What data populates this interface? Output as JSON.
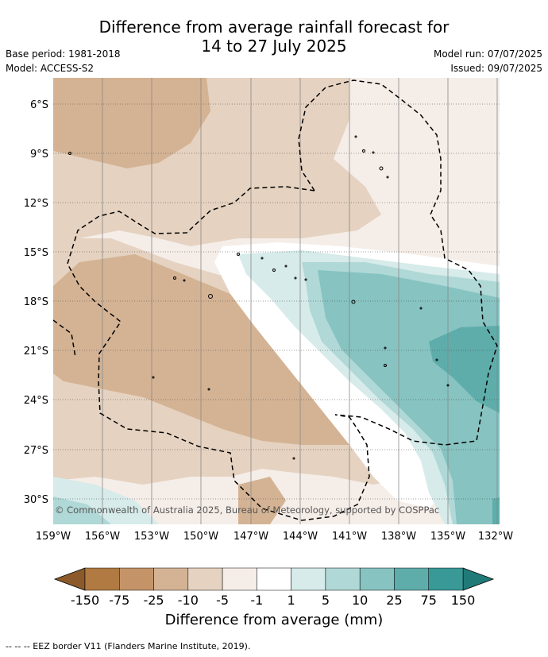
{
  "title_line1": "Difference from average rainfall forecast for",
  "title_line2": "14 to 27 July 2025",
  "base_period": "Base period: 1981-2018",
  "model": "Model: ACCESS-S2",
  "model_run": "Model run: 07/07/2025",
  "issued": "Issued: 09/07/2025",
  "copyright": "© Commonwealth of Australia 2025, Bureau of Meteorology, supported by COSPPac",
  "lat_labels": [
    "6°S",
    "9°S",
    "12°S",
    "15°S",
    "18°S",
    "21°S",
    "24°S",
    "27°S",
    "30°S"
  ],
  "lon_labels": [
    "159°W",
    "156°W",
    "153°W",
    "150°W",
    "147°W",
    "144°W",
    "141°W",
    "138°W",
    "135°W",
    "132°W"
  ],
  "colorbar": {
    "title": "Difference from average (mm)",
    "ticks": [
      "-150",
      "-75",
      "-25",
      "-10",
      "-5",
      "-1",
      "1",
      "5",
      "10",
      "25",
      "75",
      "150"
    ],
    "colors": [
      "#8c5a2a",
      "#b07a42",
      "#c49468",
      "#d4b394",
      "#e5d2c0",
      "#f5ede8",
      "#ffffff",
      "#d6ebea",
      "#afd8d6",
      "#86c3c1",
      "#5eadab",
      "#389997",
      "#1f7a78"
    ]
  },
  "footnote": "-- -- -- EEZ border V11 (Flanders Marine Institute, 2019)."
}
